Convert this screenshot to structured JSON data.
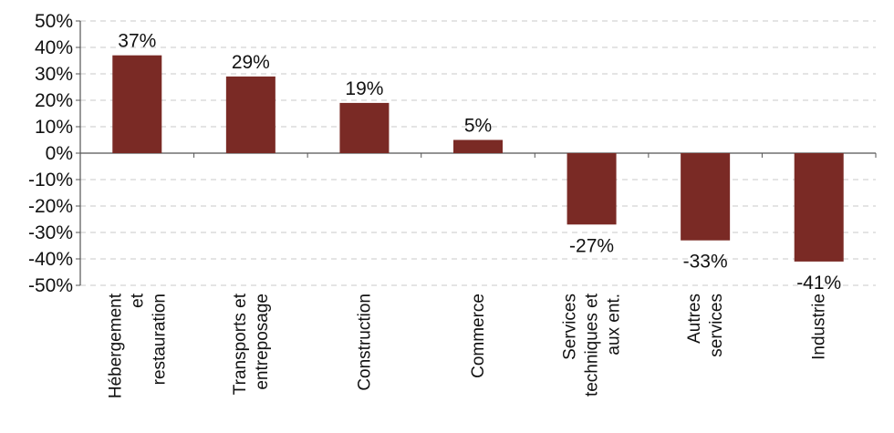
{
  "chart_data": {
    "type": "bar",
    "title": "",
    "xlabel": "",
    "ylabel": "",
    "ylim": [
      -0.5,
      0.5
    ],
    "y_ticks": [
      0.5,
      0.4,
      0.3,
      0.2,
      0.1,
      0,
      -0.1,
      -0.2,
      -0.3,
      -0.4,
      -0.5
    ],
    "y_tick_labels": [
      "50%",
      "40%",
      "30%",
      "20%",
      "10%",
      "0%",
      "-10%",
      "-20%",
      "-30%",
      "-40%",
      "-50%"
    ],
    "grid": true,
    "legend": "none",
    "bar_color": "#7a2a25",
    "categories": [
      [
        "Hébergement",
        "et",
        "restauration"
      ],
      [
        "Transports et",
        "entreposage"
      ],
      [
        "Construction"
      ],
      [
        "Commerce"
      ],
      [
        "Services",
        "techniques et",
        "aux ent."
      ],
      [
        "Autres",
        "services"
      ],
      [
        "Industrie"
      ]
    ],
    "values": [
      0.37,
      0.29,
      0.19,
      0.05,
      -0.27,
      -0.33,
      -0.41
    ],
    "data_labels": [
      "37%",
      "29%",
      "19%",
      "5%",
      "-27%",
      "-33%",
      "-41%"
    ]
  }
}
